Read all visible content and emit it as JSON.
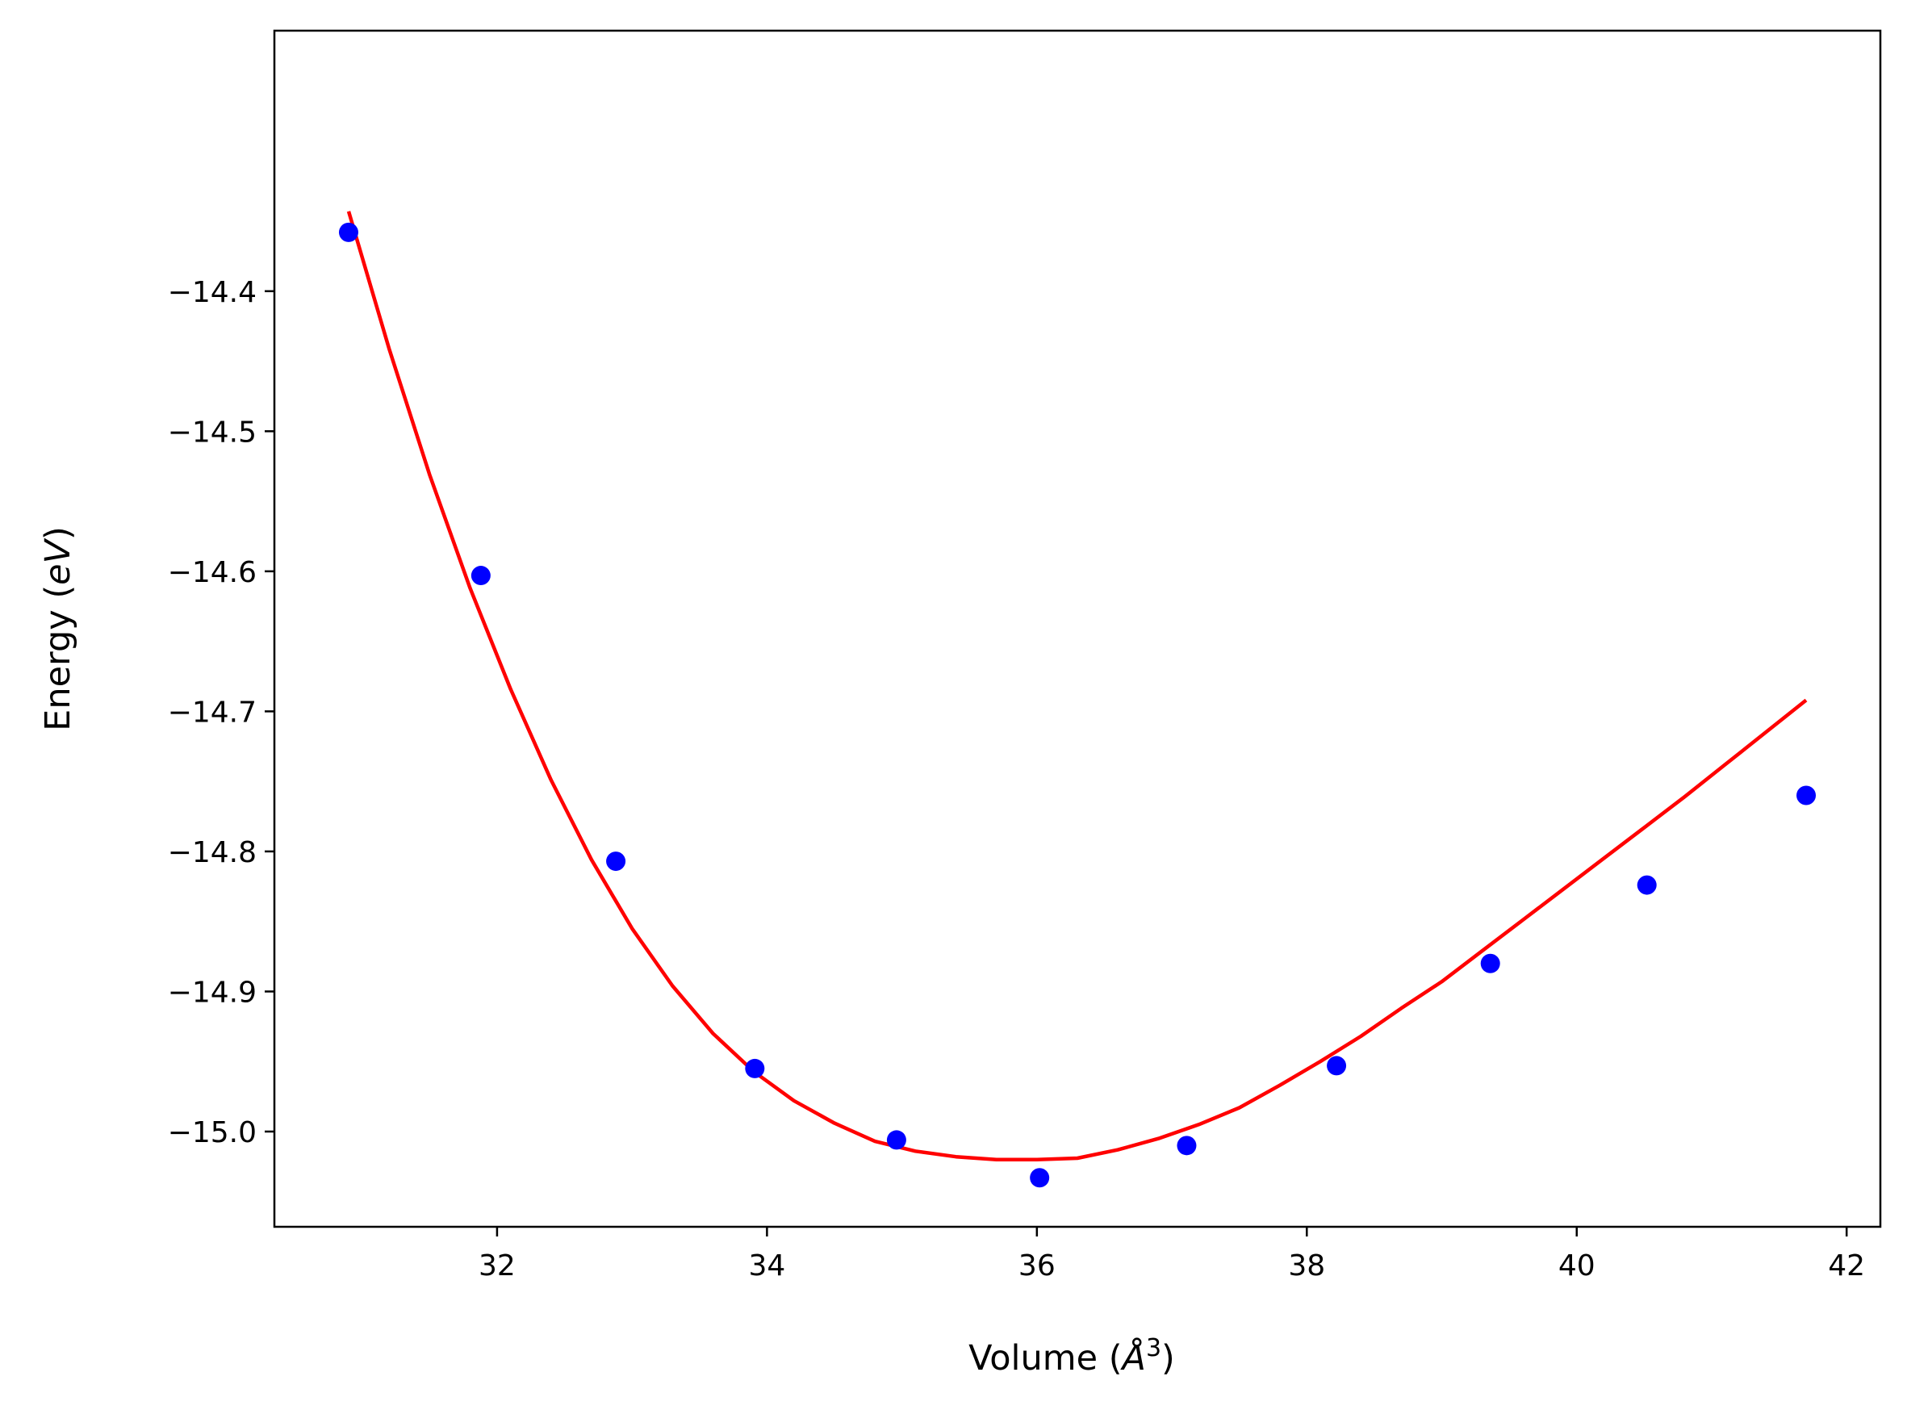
{
  "chart_data": {
    "type": "scatter",
    "xlabel": "Volume (",
    "xlabel_sym": "Å",
    "xlabel_sup": "3",
    "xlabel_end": ")",
    "ylabel": "Energy (",
    "ylabel_sym": "eV",
    "ylabel_end": ")",
    "xlim": [
      30.35,
      42.25
    ],
    "ylim": [
      -15.068,
      -14.214
    ],
    "xticks": [
      32,
      34,
      36,
      38,
      40,
      42
    ],
    "xtick_labels": [
      "32",
      "34",
      "36",
      "38",
      "40",
      "42"
    ],
    "yticks": [
      -14.4,
      -14.5,
      -14.6,
      -14.7,
      -14.8,
      -14.9,
      -15.0
    ],
    "ytick_labels": [
      "−14.4",
      "−14.5",
      "−14.6",
      "−14.7",
      "−14.8",
      "−14.9",
      "−15.0"
    ],
    "grid": false,
    "series": [
      {
        "kind": "points",
        "color": "#0000ff",
        "x": [
          30.9,
          31.88,
          32.88,
          33.91,
          34.96,
          36.02,
          37.11,
          38.22,
          39.36,
          40.52,
          41.7
        ],
        "y": [
          -14.358,
          -14.603,
          -14.807,
          -14.955,
          -15.006,
          -15.033,
          -15.01,
          -14.953,
          -14.88,
          -14.824,
          -14.76
        ]
      },
      {
        "kind": "line",
        "color": "#ff0000",
        "x": [
          30.9,
          31.2,
          31.5,
          31.8,
          32.1,
          32.4,
          32.7,
          33.0,
          33.3,
          33.6,
          33.9,
          34.2,
          34.5,
          34.8,
          35.1,
          35.4,
          35.7,
          36.0,
          36.3,
          36.6,
          36.9,
          37.2,
          37.5,
          37.8,
          38.1,
          38.4,
          38.7,
          39.0,
          39.3,
          39.6,
          39.9,
          40.2,
          40.5,
          40.8,
          41.1,
          41.4,
          41.7
        ],
        "y": [
          -14.343,
          -14.441,
          -14.531,
          -14.612,
          -14.684,
          -14.749,
          -14.806,
          -14.855,
          -14.896,
          -14.93,
          -14.957,
          -14.978,
          -14.994,
          -15.007,
          -15.014,
          -15.018,
          -15.02,
          -15.02,
          -15.019,
          -15.013,
          -15.005,
          -14.995,
          -14.983,
          -14.967,
          -14.95,
          -14.932,
          -14.912,
          -14.893,
          -14.871,
          -14.849,
          -14.827,
          -14.805,
          -14.783,
          -14.761,
          -14.738,
          -14.715,
          -14.692
        ]
      }
    ]
  }
}
